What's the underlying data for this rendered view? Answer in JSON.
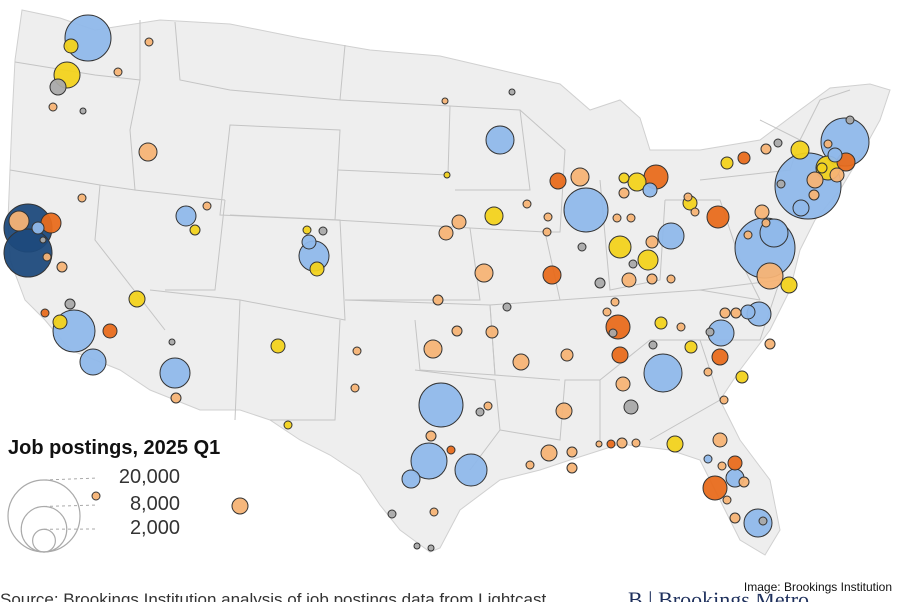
{
  "legend": {
    "title": "Job postings, 2025 Q1",
    "entries": [
      {
        "label": "20,000",
        "value": 20000
      },
      {
        "label": "8,000",
        "value": 8000
      },
      {
        "label": "2,000",
        "value": 2000
      }
    ]
  },
  "credit": "Image: Brookings Institution",
  "source_strip": "Source: Brookings Institution analysis of job postings data from Lightcast",
  "brand": "B | Brookings Metro",
  "colors": {
    "land": "#eeeeee",
    "border": "#c4c4c4",
    "blue": "#8fb8ea",
    "dark_blue": "#1d4a7c",
    "orange": "#e86b1c",
    "light_orange": "#f6b375",
    "yellow": "#f2d21c",
    "gray": "#a9a9a9",
    "outline": "#333333"
  },
  "bubble_scale_note": "bubble area proportional to job postings"
}
